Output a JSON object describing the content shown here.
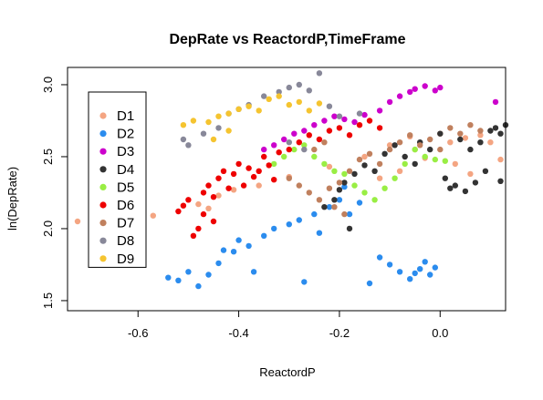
{
  "chart_data": {
    "type": "scatter",
    "title": "DepRate vs ReactordP,TimeFrame",
    "xlabel": "ReactordP",
    "ylabel": "ln(DepRate)",
    "xlim": [
      -0.74,
      0.13
    ],
    "ylim": [
      1.43,
      3.12
    ],
    "xticks": [
      -0.6,
      -0.4,
      -0.2,
      0.0
    ],
    "xtick_labels": [
      "-0.6",
      "-0.4",
      "-0.2",
      "0.0"
    ],
    "yticks": [
      1.5,
      2.0,
      2.5,
      3.0
    ],
    "ytick_labels": [
      "1.5",
      "2.0",
      "2.5",
      "3.0"
    ],
    "grid": false,
    "legend_position": "top-left",
    "series": [
      {
        "name": "D1",
        "color": "#F4A582",
        "points": [
          [
            -0.72,
            2.05
          ],
          [
            -0.62,
            2.12
          ],
          [
            -0.57,
            2.09
          ],
          [
            -0.48,
            2.17
          ],
          [
            -0.46,
            2.14
          ],
          [
            -0.44,
            2.23
          ],
          [
            -0.41,
            2.27
          ],
          [
            -0.36,
            2.3
          ],
          [
            -0.3,
            2.36
          ],
          [
            -0.22,
            2.43
          ],
          [
            -0.15,
            2.5
          ],
          [
            -0.1,
            2.58
          ],
          [
            -0.06,
            2.64
          ],
          [
            -0.03,
            2.49
          ],
          [
            0.0,
            2.66
          ],
          [
            0.02,
            2.6
          ],
          [
            0.05,
            2.63
          ],
          [
            0.08,
            2.65
          ],
          [
            0.1,
            2.6
          ],
          [
            0.12,
            2.48
          ],
          [
            -0.12,
            2.35
          ],
          [
            -0.08,
            2.4
          ],
          [
            -0.05,
            2.55
          ],
          [
            0.03,
            2.45
          ],
          [
            0.06,
            2.38
          ]
        ]
      },
      {
        "name": "D2",
        "color": "#2B8CEE",
        "points": [
          [
            -0.54,
            1.66
          ],
          [
            -0.52,
            1.64
          ],
          [
            -0.5,
            1.7
          ],
          [
            -0.48,
            1.6
          ],
          [
            -0.46,
            1.68
          ],
          [
            -0.44,
            1.76
          ],
          [
            -0.43,
            1.85
          ],
          [
            -0.41,
            1.84
          ],
          [
            -0.4,
            1.92
          ],
          [
            -0.38,
            1.88
          ],
          [
            -0.37,
            1.7
          ],
          [
            -0.35,
            1.95
          ],
          [
            -0.33,
            2.0
          ],
          [
            -0.3,
            2.03
          ],
          [
            -0.28,
            2.06
          ],
          [
            -0.27,
            1.63
          ],
          [
            -0.25,
            2.1
          ],
          [
            -0.24,
            1.97
          ],
          [
            -0.22,
            2.15
          ],
          [
            -0.2,
            2.2
          ],
          [
            -0.19,
            2.29
          ],
          [
            -0.18,
            2.1
          ],
          [
            -0.16,
            2.18
          ],
          [
            -0.14,
            1.62
          ],
          [
            -0.12,
            1.8
          ],
          [
            -0.1,
            1.75
          ],
          [
            -0.08,
            1.7
          ],
          [
            -0.05,
            1.69
          ],
          [
            -0.04,
            1.72
          ],
          [
            -0.03,
            1.77
          ],
          [
            -0.02,
            1.68
          ],
          [
            -0.01,
            1.73
          ],
          [
            -0.06,
            1.65
          ]
        ]
      },
      {
        "name": "D3",
        "color": "#CC00CC",
        "points": [
          [
            -0.35,
            2.55
          ],
          [
            -0.33,
            2.58
          ],
          [
            -0.31,
            2.62
          ],
          [
            -0.29,
            2.66
          ],
          [
            -0.27,
            2.68
          ],
          [
            -0.25,
            2.72
          ],
          [
            -0.23,
            2.75
          ],
          [
            -0.21,
            2.78
          ],
          [
            -0.19,
            2.76
          ],
          [
            -0.17,
            2.74
          ],
          [
            -0.15,
            2.79
          ],
          [
            -0.12,
            2.82
          ],
          [
            -0.1,
            2.88
          ],
          [
            -0.08,
            2.92
          ],
          [
            -0.06,
            2.95
          ],
          [
            -0.05,
            2.97
          ],
          [
            -0.03,
            2.99
          ],
          [
            -0.01,
            2.96
          ],
          [
            0.0,
            2.98
          ],
          [
            0.11,
            2.88
          ]
        ]
      },
      {
        "name": "D4",
        "color": "#333333",
        "points": [
          [
            -0.23,
            2.15
          ],
          [
            -0.21,
            2.2
          ],
          [
            -0.19,
            2.32
          ],
          [
            -0.17,
            2.38
          ],
          [
            -0.15,
            2.44
          ],
          [
            -0.13,
            2.4
          ],
          [
            -0.11,
            2.52
          ],
          [
            -0.09,
            2.58
          ],
          [
            -0.07,
            2.5
          ],
          [
            -0.05,
            2.45
          ],
          [
            -0.04,
            2.6
          ],
          [
            -0.02,
            2.55
          ],
          [
            0.0,
            2.66
          ],
          [
            0.01,
            2.35
          ],
          [
            0.02,
            2.28
          ],
          [
            0.03,
            2.3
          ],
          [
            0.04,
            2.62
          ],
          [
            0.05,
            2.26
          ],
          [
            0.06,
            2.55
          ],
          [
            0.07,
            2.32
          ],
          [
            0.08,
            2.6
          ],
          [
            0.09,
            2.4
          ],
          [
            0.1,
            2.68
          ],
          [
            0.11,
            2.7
          ],
          [
            0.12,
            2.66
          ],
          [
            0.13,
            2.72
          ],
          [
            0.12,
            2.33
          ],
          [
            -0.2,
            2.27
          ],
          [
            -0.18,
            2.0
          ]
        ]
      },
      {
        "name": "D5",
        "color": "#99EE44",
        "points": [
          [
            -0.33,
            2.45
          ],
          [
            -0.31,
            2.5
          ],
          [
            -0.29,
            2.55
          ],
          [
            -0.27,
            2.58
          ],
          [
            -0.25,
            2.5
          ],
          [
            -0.23,
            2.45
          ],
          [
            -0.21,
            2.4
          ],
          [
            -0.19,
            2.38
          ],
          [
            -0.17,
            2.3
          ],
          [
            -0.15,
            2.25
          ],
          [
            -0.13,
            2.2
          ],
          [
            -0.11,
            2.28
          ],
          [
            -0.09,
            2.35
          ],
          [
            -0.07,
            2.45
          ],
          [
            -0.05,
            2.55
          ],
          [
            -0.03,
            2.5
          ],
          [
            -0.01,
            2.48
          ],
          [
            0.01,
            2.47
          ]
        ]
      },
      {
        "name": "D6",
        "color": "#EE0000",
        "points": [
          [
            -0.52,
            2.12
          ],
          [
            -0.51,
            2.16
          ],
          [
            -0.5,
            2.2
          ],
          [
            -0.49,
            1.95
          ],
          [
            -0.48,
            2.0
          ],
          [
            -0.47,
            2.25
          ],
          [
            -0.46,
            2.3
          ],
          [
            -0.45,
            2.22
          ],
          [
            -0.44,
            2.35
          ],
          [
            -0.43,
            2.4
          ],
          [
            -0.42,
            2.28
          ],
          [
            -0.41,
            2.38
          ],
          [
            -0.4,
            2.45
          ],
          [
            -0.39,
            2.3
          ],
          [
            -0.38,
            2.42
          ],
          [
            -0.37,
            2.36
          ],
          [
            -0.36,
            2.4
          ],
          [
            -0.35,
            2.5
          ],
          [
            -0.34,
            2.44
          ],
          [
            -0.33,
            2.34
          ],
          [
            -0.32,
            2.53
          ],
          [
            -0.3,
            2.55
          ],
          [
            -0.28,
            2.6
          ],
          [
            -0.26,
            2.65
          ],
          [
            -0.24,
            2.62
          ],
          [
            -0.22,
            2.68
          ],
          [
            -0.2,
            2.7
          ],
          [
            -0.18,
            2.65
          ],
          [
            -0.16,
            2.72
          ],
          [
            -0.14,
            2.75
          ],
          [
            -0.12,
            2.7
          ],
          [
            -0.45,
            2.05
          ],
          [
            -0.47,
            2.1
          ]
        ]
      },
      {
        "name": "D7",
        "color": "#C0805E",
        "points": [
          [
            -0.3,
            2.35
          ],
          [
            -0.28,
            2.3
          ],
          [
            -0.26,
            2.25
          ],
          [
            -0.24,
            2.2
          ],
          [
            -0.22,
            2.28
          ],
          [
            -0.2,
            2.32
          ],
          [
            -0.18,
            2.4
          ],
          [
            -0.16,
            2.48
          ],
          [
            -0.14,
            2.52
          ],
          [
            -0.12,
            2.45
          ],
          [
            -0.1,
            2.55
          ],
          [
            -0.08,
            2.6
          ],
          [
            -0.06,
            2.65
          ],
          [
            -0.04,
            2.58
          ],
          [
            -0.02,
            2.62
          ],
          [
            0.0,
            2.55
          ],
          [
            0.02,
            2.7
          ],
          [
            0.04,
            2.66
          ],
          [
            0.06,
            2.72
          ],
          [
            0.08,
            2.68
          ],
          [
            -0.25,
            2.55
          ],
          [
            -0.23,
            2.6
          ],
          [
            -0.21,
            2.15
          ],
          [
            -0.19,
            2.1
          ]
        ]
      },
      {
        "name": "D8",
        "color": "#888899",
        "points": [
          [
            -0.51,
            2.62
          ],
          [
            -0.5,
            2.58
          ],
          [
            -0.47,
            2.66
          ],
          [
            -0.44,
            2.7
          ],
          [
            -0.42,
            2.8
          ],
          [
            -0.4,
            2.83
          ],
          [
            -0.38,
            2.86
          ],
          [
            -0.35,
            2.92
          ],
          [
            -0.32,
            2.95
          ],
          [
            -0.3,
            2.98
          ],
          [
            -0.28,
            3.0
          ],
          [
            -0.26,
            2.96
          ],
          [
            -0.24,
            3.08
          ],
          [
            -0.22,
            2.85
          ],
          [
            -0.2,
            2.78
          ],
          [
            -0.3,
            2.6
          ],
          [
            -0.27,
            2.55
          ],
          [
            -0.16,
            2.8
          ]
        ]
      },
      {
        "name": "D9",
        "color": "#F5C430",
        "points": [
          [
            -0.51,
            2.72
          ],
          [
            -0.49,
            2.75
          ],
          [
            -0.46,
            2.74
          ],
          [
            -0.44,
            2.78
          ],
          [
            -0.42,
            2.8
          ],
          [
            -0.4,
            2.83
          ],
          [
            -0.38,
            2.85
          ],
          [
            -0.36,
            2.82
          ],
          [
            -0.34,
            2.9
          ],
          [
            -0.32,
            2.92
          ],
          [
            -0.3,
            2.86
          ],
          [
            -0.28,
            2.88
          ],
          [
            -0.26,
            2.82
          ],
          [
            -0.24,
            2.87
          ],
          [
            -0.45,
            2.62
          ],
          [
            -0.42,
            2.68
          ]
        ]
      }
    ]
  }
}
